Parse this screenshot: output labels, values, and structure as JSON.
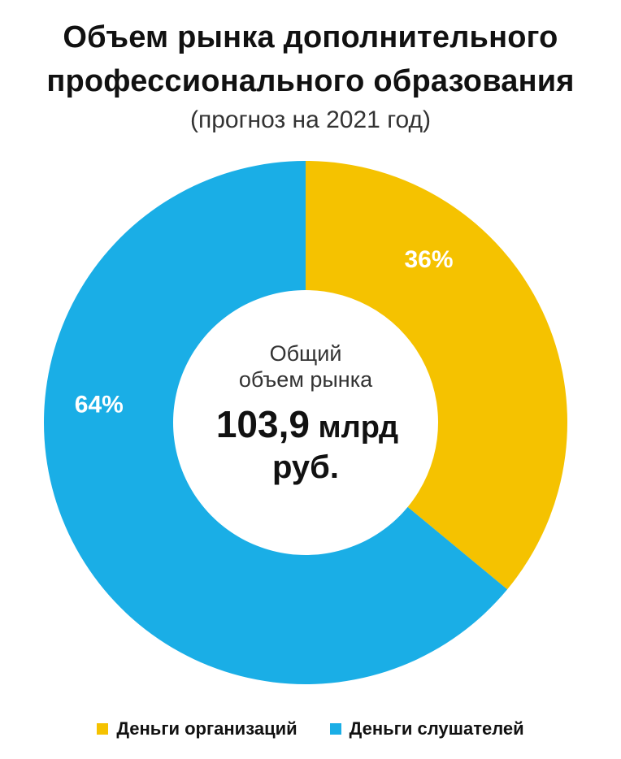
{
  "title_line1": "Объем рынка дополнительного",
  "title_line2": "профессионального образования",
  "subtitle": "(прогноз на 2021 год)",
  "center": {
    "label_line1": "Общий",
    "label_line2": "объем рынка",
    "value_line1": "103,9 млрд",
    "value_line2": "руб."
  },
  "colors": {
    "organizations": "#F5C200",
    "listeners": "#1AAEE6"
  },
  "chart_data": {
    "type": "pie",
    "variant": "donut",
    "title": "Объем рынка дополнительного профессионального образования",
    "subtitle": "(прогноз на 2021 год)",
    "categories": [
      "Деньги организаций",
      "Деньги слушателей"
    ],
    "values": [
      36,
      64
    ],
    "value_labels": [
      "36%",
      "64%"
    ],
    "colors": [
      "#F5C200",
      "#1AAEE6"
    ],
    "legend_position": "bottom"
  }
}
